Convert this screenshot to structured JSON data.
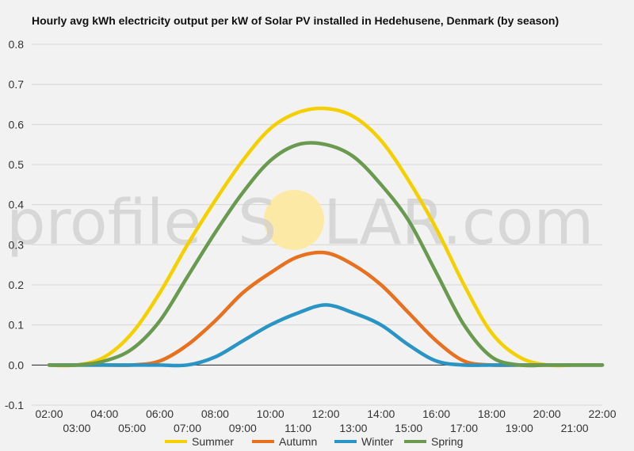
{
  "chart_data": {
    "type": "line",
    "title": "Hourly avg kWh electricity output per kW of Solar PV installed in Hedehusene, Denmark (by season)",
    "xlabel": "",
    "ylabel": "",
    "ylim": [
      -0.1,
      0.8
    ],
    "yticks": [
      "0.8",
      "0.7",
      "0.6",
      "0.5",
      "0.4",
      "0.3",
      "0.2",
      "0.1",
      "0.0",
      "-0.1"
    ],
    "x": [
      "02:00",
      "03:00",
      "04:00",
      "05:00",
      "06:00",
      "07:00",
      "08:00",
      "09:00",
      "10:00",
      "11:00",
      "12:00",
      "13:00",
      "14:00",
      "15:00",
      "16:00",
      "17:00",
      "18:00",
      "19:00",
      "20:00",
      "21:00",
      "22:00"
    ],
    "grid": true,
    "legend_position": "bottom",
    "series": [
      {
        "name": "Summer",
        "color": "#f5d000",
        "values": [
          0.0,
          0.0,
          0.02,
          0.08,
          0.18,
          0.3,
          0.41,
          0.51,
          0.59,
          0.63,
          0.64,
          0.62,
          0.56,
          0.46,
          0.34,
          0.2,
          0.08,
          0.02,
          0.0,
          0.0,
          0.0
        ]
      },
      {
        "name": "Autumn",
        "color": "#e8711f",
        "values": [
          0.0,
          0.0,
          0.0,
          0.0,
          0.01,
          0.05,
          0.11,
          0.18,
          0.23,
          0.27,
          0.28,
          0.25,
          0.2,
          0.13,
          0.06,
          0.01,
          0.0,
          0.0,
          0.0,
          0.0,
          0.0
        ]
      },
      {
        "name": "Winter",
        "color": "#2a95c4",
        "values": [
          0.0,
          0.0,
          0.0,
          0.0,
          0.0,
          0.0,
          0.02,
          0.06,
          0.1,
          0.13,
          0.15,
          0.13,
          0.1,
          0.05,
          0.01,
          0.0,
          0.0,
          0.0,
          0.0,
          0.0,
          0.0
        ]
      },
      {
        "name": "Spring",
        "color": "#6a9a4f",
        "values": [
          0.0,
          0.0,
          0.01,
          0.04,
          0.11,
          0.22,
          0.33,
          0.43,
          0.51,
          0.55,
          0.55,
          0.52,
          0.45,
          0.36,
          0.23,
          0.1,
          0.02,
          0.0,
          0.0,
          0.0,
          0.0
        ]
      }
    ]
  },
  "watermark": {
    "text_left": "profile",
    "text_s": "S",
    "text_right": "LAR.com",
    "sun_color": "#fde9a6"
  }
}
